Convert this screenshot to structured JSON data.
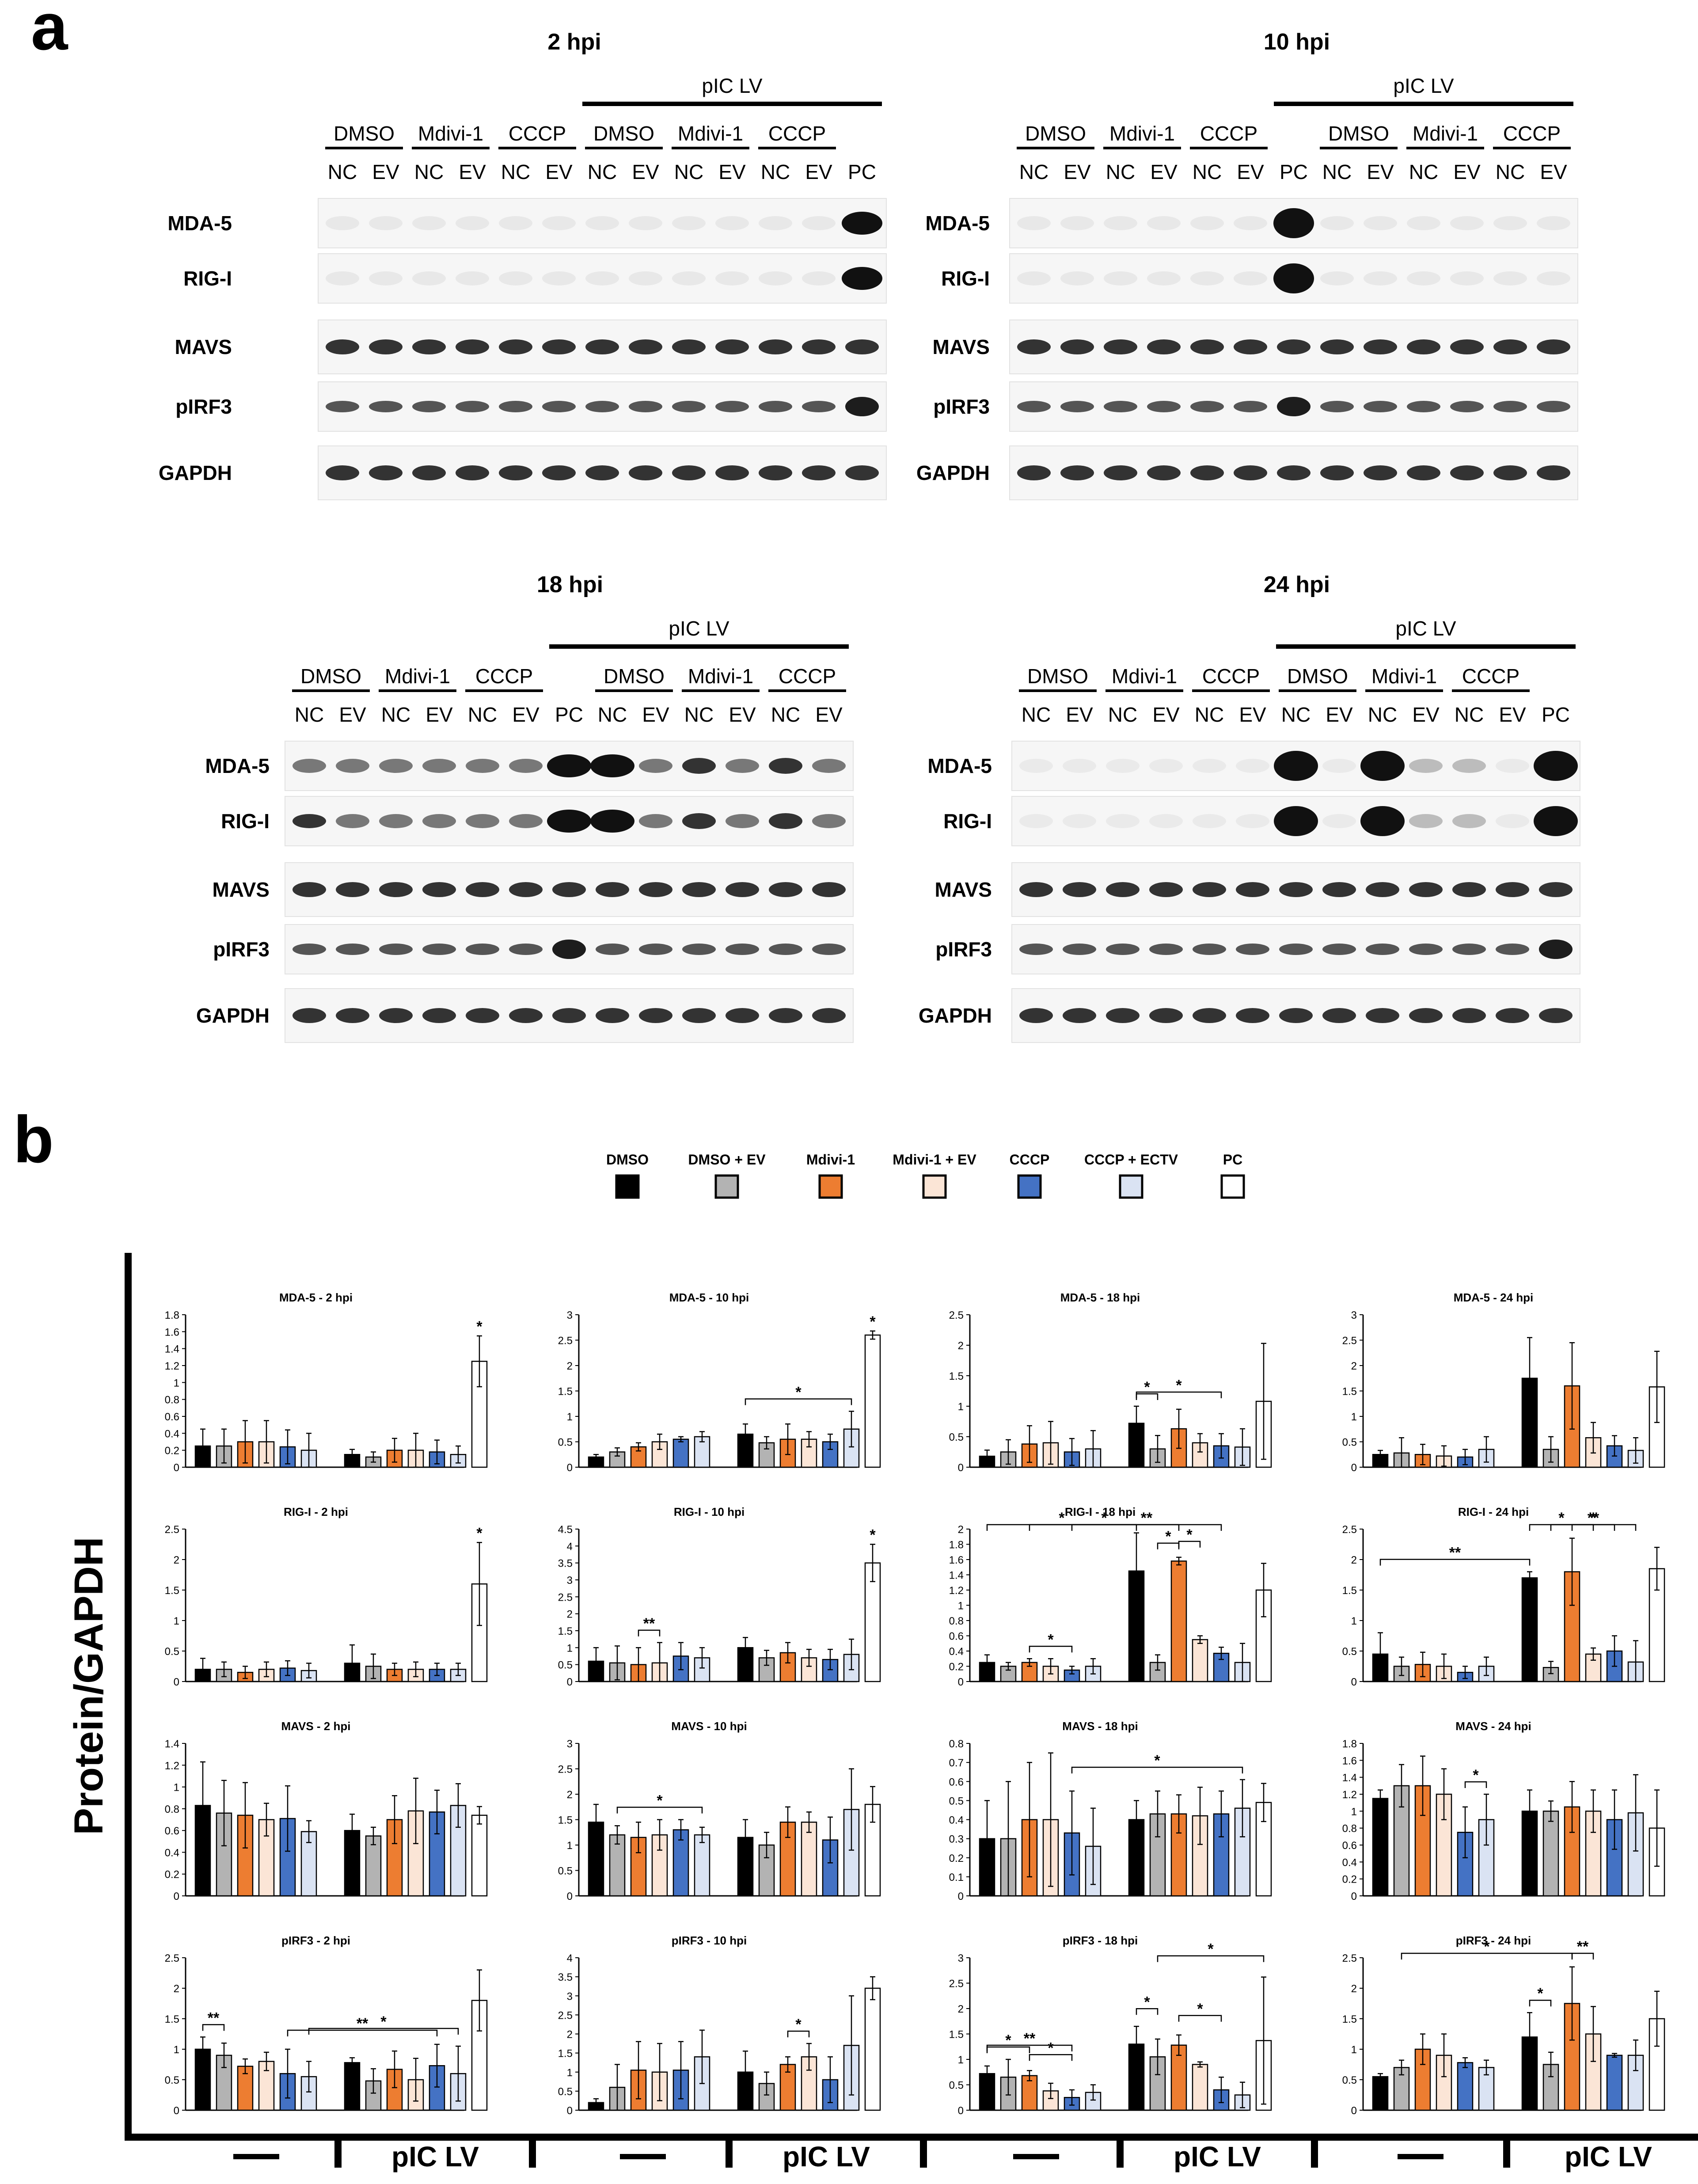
{
  "panel_labels": {
    "a": "a",
    "b": "b"
  },
  "western_blots": {
    "proteins": [
      "MDA-5",
      "RIG-I",
      "MAVS",
      "pIRF3",
      "GAPDH"
    ],
    "blots": [
      {
        "time": "2 hpi",
        "pic_lv_label": "pIC LV",
        "groups": [
          "DMSO",
          "Mdivi-1",
          "CCCP",
          "DMSO",
          "Mdivi-1",
          "CCCP"
        ],
        "lanes": [
          "NC",
          "EV",
          "NC",
          "EV",
          "NC",
          "EV",
          "NC",
          "EV",
          "NC",
          "EV",
          "NC",
          "EV",
          "PC"
        ]
      },
      {
        "time": "10 hpi",
        "pic_lv_label": "pIC LV",
        "groups": [
          "DMSO",
          "Mdivi-1",
          "CCCP",
          "DMSO",
          "Mdivi-1",
          "CCCP"
        ],
        "lanes": [
          "NC",
          "EV",
          "NC",
          "EV",
          "NC",
          "EV",
          "PC",
          "NC",
          "EV",
          "NC",
          "EV",
          "NC",
          "EV"
        ]
      },
      {
        "time": "18 hpi",
        "pic_lv_label": "pIC LV",
        "groups": [
          "DMSO",
          "Mdivi-1",
          "CCCP",
          "DMSO",
          "Mdivi-1",
          "CCCP"
        ],
        "lanes": [
          "NC",
          "EV",
          "NC",
          "EV",
          "NC",
          "EV",
          "PC",
          "NC",
          "EV",
          "NC",
          "EV",
          "NC",
          "EV"
        ]
      },
      {
        "time": "24 hpi",
        "pic_lv_label": "pIC LV",
        "groups": [
          "DMSO",
          "Mdivi-1",
          "CCCP",
          "DMSO",
          "Mdivi-1",
          "CCCP"
        ],
        "lanes": [
          "NC",
          "EV",
          "NC",
          "EV",
          "NC",
          "EV",
          "NC",
          "EV",
          "NC",
          "EV",
          "NC",
          "EV",
          "PC"
        ]
      }
    ]
  },
  "legend": [
    {
      "label": "DMSO",
      "color": "#000000"
    },
    {
      "label": "DMSO + EV",
      "color": "#b3b3b3"
    },
    {
      "label": "Mdivi-1",
      "color": "#ed7d31"
    },
    {
      "label": "Mdivi-1 + EV",
      "color": "#fbe5d6"
    },
    {
      "label": "CCCP",
      "color": "#4472c4"
    },
    {
      "label": "CCCP + ECTV",
      "color": "#dae3f3"
    },
    {
      "label": "PC",
      "color": "#ffffff"
    }
  ],
  "y_axis_title": "Protein/GAPDH",
  "bottom_labels": {
    "mock": "—",
    "pic": "pIC LV"
  },
  "chart_data": [
    {
      "type": "bar",
      "title": "MDA-5 - 2 hpi",
      "ylim": [
        0,
        1.8
      ],
      "yticks": [
        "0",
        "0.2",
        "0.4",
        "0.6",
        "0.8",
        "1",
        "1.2",
        "1.4",
        "1.6",
        "1.8"
      ],
      "values": [
        0.25,
        0.25,
        0.3,
        0.3,
        0.24,
        0.2,
        0.15,
        0.12,
        0.2,
        0.2,
        0.18,
        0.15,
        1.25
      ],
      "errors": [
        0.2,
        0.2,
        0.25,
        0.25,
        0.2,
        0.2,
        0.06,
        0.06,
        0.14,
        0.2,
        0.14,
        0.1,
        0.3
      ],
      "annotations": [
        {
          "text": "*",
          "bar": 12
        }
      ]
    },
    {
      "type": "bar",
      "title": "MDA-5 - 10 hpi",
      "ylim": [
        0,
        3
      ],
      "yticks": [
        "0",
        "0.5",
        "1",
        "1.5",
        "2",
        "2.5",
        "3"
      ],
      "values": [
        0.2,
        0.3,
        0.4,
        0.5,
        0.55,
        0.6,
        0.65,
        0.48,
        0.55,
        0.55,
        0.5,
        0.75,
        2.6
      ],
      "errors": [
        0.05,
        0.08,
        0.08,
        0.15,
        0.05,
        0.1,
        0.2,
        0.12,
        0.3,
        0.15,
        0.15,
        0.35,
        0.08
      ],
      "annotations": [
        {
          "text": "*",
          "bar": 12
        },
        {
          "text": "*",
          "from": 6,
          "to": 11
        }
      ]
    },
    {
      "type": "bar",
      "title": "MDA-5 - 18 hpi",
      "ylim": [
        0,
        2.5
      ],
      "yticks": [
        "0",
        "0.5",
        "1",
        "1.5",
        "2",
        "2.5"
      ],
      "values": [
        0.18,
        0.25,
        0.38,
        0.4,
        0.25,
        0.3,
        0.72,
        0.3,
        0.63,
        0.4,
        0.35,
        0.33,
        1.08
      ],
      "errors": [
        0.1,
        0.2,
        0.3,
        0.35,
        0.22,
        0.3,
        0.28,
        0.22,
        0.32,
        0.15,
        0.2,
        0.3,
        0.95
      ],
      "annotations": [
        {
          "text": "*",
          "from": 6,
          "to": 7
        },
        {
          "text": "*",
          "from": 6,
          "to": 10
        }
      ]
    },
    {
      "type": "bar",
      "title": "MDA-5 - 24 hpi",
      "ylim": [
        0,
        3
      ],
      "yticks": [
        "0",
        "0.5",
        "1",
        "1.5",
        "2",
        "2.5",
        "3"
      ],
      "values": [
        0.25,
        0.28,
        0.25,
        0.22,
        0.2,
        0.35,
        1.75,
        0.35,
        1.6,
        0.58,
        0.42,
        0.33,
        1.58
      ],
      "errors": [
        0.08,
        0.3,
        0.2,
        0.2,
        0.15,
        0.25,
        0.8,
        0.25,
        0.85,
        0.3,
        0.2,
        0.25,
        0.7
      ],
      "annotations": []
    },
    {
      "type": "bar",
      "title": "RIG-I - 2 hpi",
      "ylim": [
        0,
        2.5
      ],
      "yticks": [
        "0",
        "0.5",
        "1",
        "1.5",
        "2",
        "2.5"
      ],
      "values": [
        0.2,
        0.2,
        0.15,
        0.2,
        0.22,
        0.18,
        0.3,
        0.25,
        0.2,
        0.2,
        0.2,
        0.2,
        1.6
      ],
      "errors": [
        0.18,
        0.12,
        0.1,
        0.12,
        0.12,
        0.12,
        0.3,
        0.2,
        0.1,
        0.12,
        0.1,
        0.1,
        0.68
      ],
      "annotations": [
        {
          "text": "*",
          "bar": 12
        }
      ]
    },
    {
      "type": "bar",
      "title": "RIG-I - 10 hpi",
      "ylim": [
        0,
        4.5
      ],
      "yticks": [
        "0",
        "0.5",
        "1",
        "1.5",
        "2",
        "2.5",
        "3",
        "3.5",
        "4",
        "4.5"
      ],
      "values": [
        0.6,
        0.55,
        0.5,
        0.55,
        0.75,
        0.7,
        1.0,
        0.7,
        0.85,
        0.7,
        0.65,
        0.8,
        3.5
      ],
      "errors": [
        0.4,
        0.5,
        0.5,
        0.6,
        0.4,
        0.3,
        0.3,
        0.22,
        0.3,
        0.25,
        0.3,
        0.45,
        0.55
      ],
      "annotations": [
        {
          "text": "*",
          "bar": 12
        },
        {
          "text": "**",
          "from": 2,
          "to": 3
        }
      ]
    },
    {
      "type": "bar",
      "title": "RIG-I - 18 hpi",
      "ylim": [
        0,
        2
      ],
      "yticks": [
        "0",
        "0.2",
        "0.4",
        "0.6",
        "0.8",
        "1",
        "1.2",
        "1.4",
        "1.6",
        "1.8",
        "2"
      ],
      "values": [
        0.25,
        0.2,
        0.25,
        0.2,
        0.15,
        0.2,
        1.45,
        0.25,
        1.58,
        0.55,
        0.37,
        0.25,
        1.2
      ],
      "errors": [
        0.1,
        0.05,
        0.05,
        0.1,
        0.05,
        0.1,
        0.5,
        0.1,
        0.05,
        0.05,
        0.08,
        0.25,
        0.35
      ],
      "annotations": [
        {
          "text": "*",
          "from": 2,
          "to": 4
        },
        {
          "text": "*",
          "from": 7,
          "to": 8
        },
        {
          "text": "*",
          "from": 8,
          "to": 9
        },
        {
          "text": "*",
          "from": 0,
          "to": 6
        },
        {
          "text": "*",
          "from": 2,
          "to": 8
        },
        {
          "text": "**",
          "from": 4,
          "to": 10
        }
      ]
    },
    {
      "type": "bar",
      "title": "RIG-I - 24 hpi",
      "ylim": [
        0,
        2.5
      ],
      "yticks": [
        "0",
        "0.5",
        "1",
        "1.5",
        "2",
        "2.5"
      ],
      "values": [
        0.45,
        0.25,
        0.28,
        0.25,
        0.15,
        0.25,
        1.7,
        0.23,
        1.8,
        0.45,
        0.5,
        0.32,
        1.85
      ],
      "errors": [
        0.35,
        0.15,
        0.2,
        0.2,
        0.1,
        0.15,
        0.1,
        0.1,
        0.55,
        0.1,
        0.25,
        0.35,
        0.35
      ],
      "annotations": [
        {
          "text": "**",
          "from": 0,
          "to": 6
        },
        {
          "text": "*",
          "from": 6,
          "to": 9
        },
        {
          "text": "*",
          "from": 8,
          "to": 10
        },
        {
          "text": "**",
          "from": 7,
          "to": 11
        }
      ]
    },
    {
      "type": "bar",
      "title": "MAVS - 2 hpi",
      "ylim": [
        0,
        1.4
      ],
      "yticks": [
        "0",
        "0.2",
        "0.4",
        "0.6",
        "0.8",
        "1",
        "1.2",
        "1.4"
      ],
      "values": [
        0.83,
        0.76,
        0.74,
        0.7,
        0.71,
        0.59,
        0.6,
        0.55,
        0.7,
        0.78,
        0.77,
        0.83,
        0.74
      ],
      "errors": [
        0.4,
        0.3,
        0.3,
        0.15,
        0.3,
        0.1,
        0.15,
        0.08,
        0.22,
        0.3,
        0.2,
        0.2,
        0.08
      ],
      "annotations": []
    },
    {
      "type": "bar",
      "title": "MAVS - 10 hpi",
      "ylim": [
        0,
        3
      ],
      "yticks": [
        "0",
        "0.5",
        "1",
        "1.5",
        "2",
        "2.5",
        "3"
      ],
      "values": [
        1.45,
        1.2,
        1.15,
        1.2,
        1.3,
        1.2,
        1.15,
        1.0,
        1.45,
        1.45,
        1.1,
        1.7,
        1.8
      ],
      "errors": [
        0.35,
        0.18,
        0.3,
        0.3,
        0.2,
        0.15,
        0.35,
        0.25,
        0.3,
        0.2,
        0.45,
        0.8,
        0.35
      ],
      "annotations": [
        {
          "text": "*",
          "from": 1,
          "to": 5
        }
      ]
    },
    {
      "type": "bar",
      "title": "MAVS - 18 hpi",
      "ylim": [
        0,
        0.8
      ],
      "yticks": [
        "0",
        "0.1",
        "0.2",
        "0.3",
        "0.4",
        "0.5",
        "0.6",
        "0.7",
        "0.8"
      ],
      "values": [
        0.3,
        0.3,
        0.4,
        0.4,
        0.33,
        0.26,
        0.4,
        0.43,
        0.43,
        0.42,
        0.43,
        0.46,
        0.49
      ],
      "errors": [
        0.2,
        0.3,
        0.3,
        0.35,
        0.22,
        0.2,
        0.1,
        0.12,
        0.1,
        0.15,
        0.12,
        0.15,
        0.1
      ],
      "annotations": [
        {
          "text": "*",
          "from": 4,
          "to": 11
        }
      ]
    },
    {
      "type": "bar",
      "title": "MAVS - 24 hpi",
      "ylim": [
        0,
        1.8
      ],
      "yticks": [
        "0",
        "0.2",
        "0.4",
        "0.6",
        "0.8",
        "1",
        "1.2",
        "1.4",
        "1.6",
        "1.8"
      ],
      "values": [
        1.15,
        1.3,
        1.3,
        1.2,
        0.75,
        0.9,
        1.0,
        1.0,
        1.05,
        1.0,
        0.9,
        0.98,
        0.8
      ],
      "errors": [
        0.1,
        0.25,
        0.35,
        0.3,
        0.3,
        0.3,
        0.25,
        0.12,
        0.3,
        0.25,
        0.35,
        0.45,
        0.45
      ],
      "annotations": [
        {
          "text": "*",
          "from": 4,
          "to": 5
        }
      ]
    },
    {
      "type": "bar",
      "title": "pIRF3 - 2 hpi",
      "ylim": [
        0,
        2.5
      ],
      "yticks": [
        "0",
        "0.5",
        "1",
        "1.5",
        "2",
        "2.5"
      ],
      "values": [
        1.0,
        0.9,
        0.72,
        0.8,
        0.6,
        0.55,
        0.78,
        0.48,
        0.67,
        0.5,
        0.73,
        0.6,
        1.8
      ],
      "errors": [
        0.2,
        0.2,
        0.12,
        0.15,
        0.4,
        0.25,
        0.08,
        0.2,
        0.3,
        0.35,
        0.35,
        0.45,
        0.5
      ],
      "annotations": [
        {
          "text": "**",
          "from": 0,
          "to": 1
        },
        {
          "text": "**",
          "from": 4,
          "to": 10
        },
        {
          "text": "*",
          "from": 5,
          "to": 11
        }
      ]
    },
    {
      "type": "bar",
      "title": "pIRF3 - 10 hpi",
      "ylim": [
        0,
        4
      ],
      "yticks": [
        "0",
        "0.5",
        "1",
        "1.5",
        "2",
        "2.5",
        "3",
        "3.5",
        "4"
      ],
      "values": [
        0.2,
        0.6,
        1.05,
        1.0,
        1.05,
        1.4,
        1.0,
        0.7,
        1.2,
        1.4,
        0.8,
        1.7,
        3.2
      ],
      "errors": [
        0.1,
        0.6,
        0.75,
        0.75,
        0.75,
        0.7,
        0.55,
        0.3,
        0.2,
        0.35,
        0.6,
        1.3,
        0.3
      ],
      "annotations": [
        {
          "text": "*",
          "from": 8,
          "to": 9
        }
      ]
    },
    {
      "type": "bar",
      "title": "pIRF3 - 18 hpi",
      "ylim": [
        0,
        3
      ],
      "yticks": [
        "0",
        "0.5",
        "1",
        "1.5",
        "2",
        "2.5",
        "3"
      ],
      "values": [
        0.72,
        0.65,
        0.68,
        0.38,
        0.25,
        0.35,
        1.3,
        1.05,
        1.28,
        0.9,
        0.4,
        0.3,
        1.37
      ],
      "errors": [
        0.15,
        0.35,
        0.1,
        0.15,
        0.15,
        0.15,
        0.35,
        0.35,
        0.2,
        0.05,
        0.25,
        0.25,
        1.25
      ],
      "annotations": [
        {
          "text": "*",
          "from": 0,
          "to": 2
        },
        {
          "text": "**",
          "from": 0,
          "to": 4
        },
        {
          "text": "*",
          "from": 2,
          "to": 4
        },
        {
          "text": "*",
          "from": 6,
          "to": 7
        },
        {
          "text": "*",
          "from": 8,
          "to": 10
        },
        {
          "text": "*",
          "from": 7,
          "to": 12
        }
      ]
    },
    {
      "type": "bar",
      "title": "pIRF3 - 24 hpi",
      "ylim": [
        0,
        2.5
      ],
      "yticks": [
        "0",
        "0.5",
        "1",
        "1.5",
        "2",
        "2.5"
      ],
      "values": [
        0.55,
        0.7,
        1.0,
        0.9,
        0.78,
        0.7,
        1.2,
        0.75,
        1.75,
        1.25,
        0.9,
        0.9,
        1.5
      ],
      "errors": [
        0.05,
        0.12,
        0.25,
        0.35,
        0.08,
        0.12,
        0.4,
        0.2,
        0.6,
        0.45,
        0.03,
        0.25,
        0.45
      ],
      "annotations": [
        {
          "text": "*",
          "from": 6,
          "to": 7
        },
        {
          "text": "**",
          "from": 8,
          "to": 9
        },
        {
          "text": "*",
          "from": 1,
          "to": 8
        }
      ]
    }
  ]
}
